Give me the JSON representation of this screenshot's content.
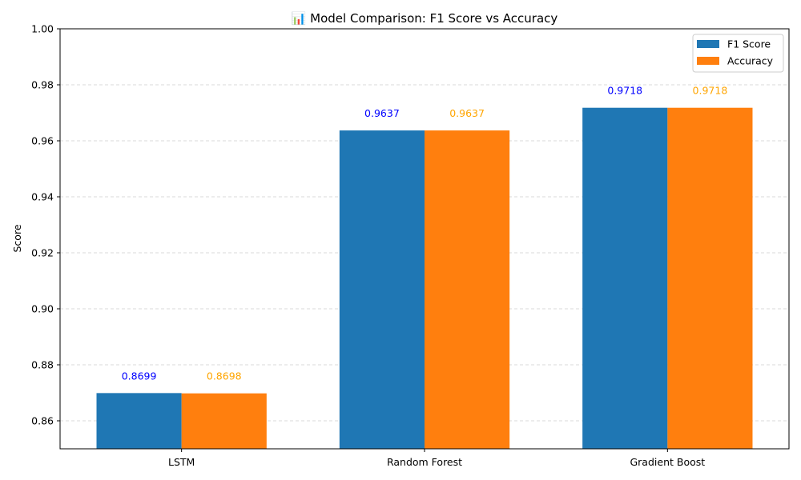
{
  "chart_data": {
    "type": "bar",
    "title": "📊 Model Comparison: F1 Score vs Accuracy",
    "xlabel": "",
    "ylabel": "Score",
    "ylim": [
      0.85,
      1.0
    ],
    "yticks": [
      "0.86",
      "0.88",
      "0.90",
      "0.92",
      "0.94",
      "0.96",
      "0.98",
      "1.00"
    ],
    "categories": [
      "LSTM",
      "Random Forest",
      "Gradient Boost"
    ],
    "series": [
      {
        "name": "F1 Score",
        "color": "#1f77b4",
        "label_color": "#0000ff",
        "values": [
          0.8699,
          0.9637,
          0.9718
        ],
        "labels": [
          "0.8699",
          "0.9637",
          "0.9718"
        ]
      },
      {
        "name": "Accuracy",
        "color": "#ff7f0e",
        "label_color": "#ffa500",
        "values": [
          0.8698,
          0.9637,
          0.9718
        ],
        "labels": [
          "0.8698",
          "0.9637",
          "0.9718"
        ]
      }
    ],
    "grid": "y-dashed",
    "legend_position": "top-right"
  }
}
